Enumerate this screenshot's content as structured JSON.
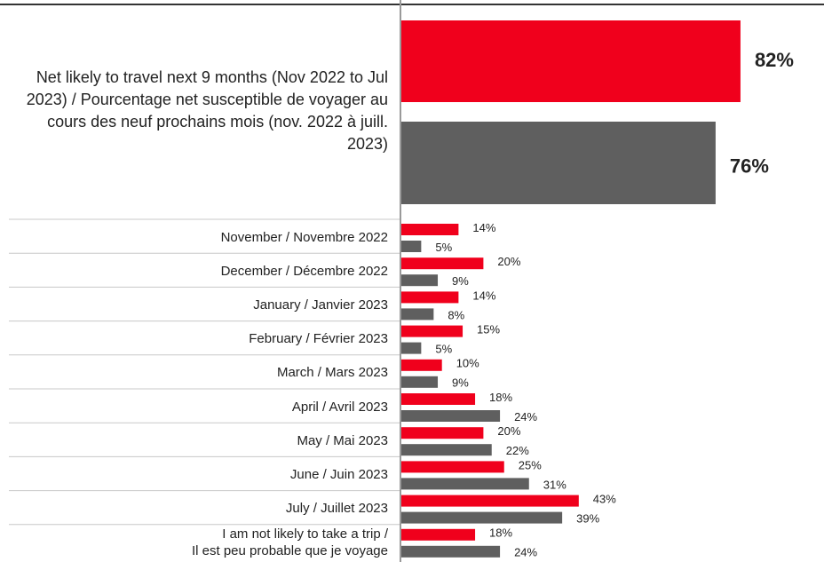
{
  "chart_data": {
    "type": "bar",
    "orientation": "horizontal",
    "categories": [
      "Net likely to travel next 9 months (Nov 2022 to Jul 2023) / Pourcentage net susceptible de voyager au cours des neuf prochains mois (nov. 2022 à juill. 2023)",
      "November / Novembre 2022",
      "December / Décembre 2022",
      "January / Janvier 2023",
      "February / Février  2023",
      "March / Mars  2023",
      "April / Avril  2023",
      "May / Mai  2023",
      "June / Juin 2023",
      "July / Juillet 2023",
      "I am not likely to take a trip /\nIl est peu probable que je voyage"
    ],
    "series": [
      {
        "color": "#f0001c",
        "values": [
          82,
          14,
          20,
          14,
          15,
          10,
          18,
          20,
          25,
          43,
          18
        ],
        "value_labels": [
          "82%",
          "14%",
          "20%",
          "14%",
          "15%",
          "10%",
          "18%",
          "20%",
          "25%",
          "43%",
          "18%"
        ]
      },
      {
        "color": "#5f5f5f",
        "values": [
          76,
          5,
          9,
          8,
          5,
          9,
          24,
          22,
          31,
          39,
          24
        ],
        "value_labels": [
          "76%",
          "5%",
          "9%",
          "8%",
          "5%",
          "9%",
          "24%",
          "22%",
          "31%",
          "39%",
          "24%"
        ]
      }
    ],
    "xlim": [
      0,
      100
    ]
  }
}
